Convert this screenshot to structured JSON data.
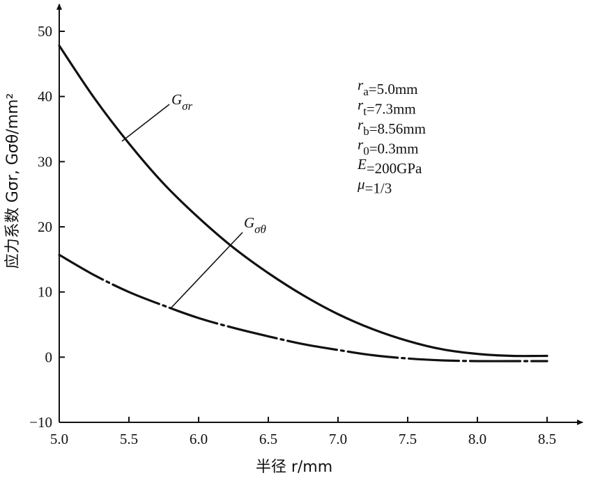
{
  "chart_data": {
    "type": "line",
    "x": [
      5.0,
      5.25,
      5.5,
      5.75,
      6.0,
      6.25,
      6.5,
      6.75,
      7.0,
      7.25,
      7.5,
      7.75,
      8.0,
      8.25,
      8.5
    ],
    "series": [
      {
        "name": "Gσr",
        "values": [
          47.8,
          39.8,
          32.8,
          26.6,
          21.4,
          16.8,
          12.9,
          9.5,
          6.6,
          4.3,
          2.5,
          1.2,
          0.5,
          0.2,
          0.2
        ]
      },
      {
        "name": "Gσθ",
        "values": [
          15.7,
          12.6,
          10.0,
          7.9,
          6.0,
          4.5,
          3.2,
          2.0,
          1.1,
          0.3,
          -0.2,
          -0.5,
          -0.6,
          -0.6,
          -0.6
        ]
      }
    ],
    "xlim": [
      5.0,
      8.7
    ],
    "ylim": [
      -10,
      55
    ],
    "xticks": [
      "5.0",
      "5.5",
      "6.0",
      "6.5",
      "7.0",
      "7.5",
      "8.0",
      "8.5"
    ],
    "yticks": [
      "−10",
      "0",
      "10",
      "20",
      "30",
      "40",
      "50"
    ],
    "xlabel": "半径 r/mm",
    "ylabel": "应力系数 Gσr, Gσθ/mm²",
    "series_labels": [
      "G",
      "σr",
      "G",
      "σθ"
    ],
    "annotations": [
      {
        "sym": "r",
        "sub": "a",
        "val": "=5.0mm"
      },
      {
        "sym": "r",
        "sub": "t",
        "val": "=7.3mm"
      },
      {
        "sym": "r",
        "sub": "b",
        "val": "=8.56mm"
      },
      {
        "sym": "r",
        "sub": "0",
        "val": "=0.3mm"
      },
      {
        "sym": "E",
        "sub": "",
        "val": "=200GPa"
      },
      {
        "sym": "μ",
        "sub": "",
        "val": "=1/3"
      }
    ],
    "grid": false
  }
}
